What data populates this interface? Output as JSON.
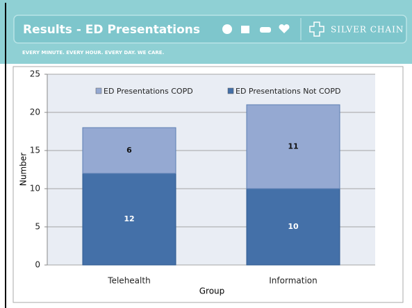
{
  "header": {
    "title": "Results - ED Presentations",
    "logo": "SILVER CHAIN",
    "tagline": "EVERY MINUTE. EVERY HOUR. EVERY DAY. WE CARE."
  },
  "chart_data": {
    "type": "stacked_bar",
    "x_label": "Group",
    "y_label": "Number",
    "categories": [
      "Telehealth",
      "Information"
    ],
    "series": [
      {
        "name": "ED Presentations Not COPD",
        "color": "#4470a8",
        "values": [
          12,
          10
        ]
      },
      {
        "name": "ED Presentations COPD",
        "color": "#95a9d2",
        "values": [
          6,
          11
        ]
      }
    ],
    "ylim": [
      0,
      25
    ],
    "yticks": [
      0,
      5,
      10,
      15,
      20,
      25
    ],
    "grid": true
  }
}
